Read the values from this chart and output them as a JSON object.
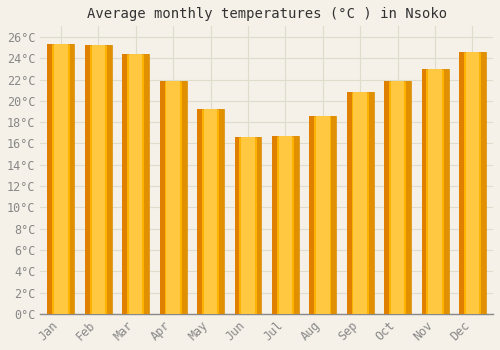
{
  "title": "Average monthly temperatures (°C ) in Nsoko",
  "months": [
    "Jan",
    "Feb",
    "Mar",
    "Apr",
    "May",
    "Jun",
    "Jul",
    "Aug",
    "Sep",
    "Oct",
    "Nov",
    "Dec"
  ],
  "values": [
    25.3,
    25.2,
    24.4,
    21.9,
    19.2,
    16.6,
    16.7,
    18.6,
    20.8,
    21.9,
    23.0,
    24.6
  ],
  "bar_color_top": "#FFC200",
  "bar_color_bottom": "#FFB700",
  "bar_color_left": "#E8900A",
  "background_color": "#F5F0E8",
  "plot_bg_color": "#F5F0E8",
  "grid_color": "#DDDDCC",
  "ylim": [
    0,
    27
  ],
  "ytick_step": 2,
  "title_fontsize": 10,
  "tick_fontsize": 8.5,
  "font_color": "#888888",
  "title_color": "#333333",
  "spine_color": "#888888"
}
